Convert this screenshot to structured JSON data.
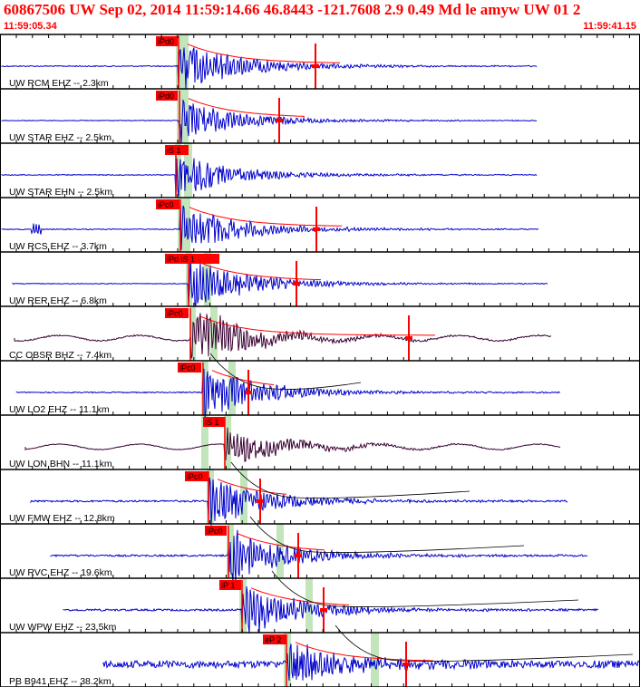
{
  "header": {
    "title": "60867506 UW Sep 02, 2014 11:59:14.66   46.8443 -121.7608  2.9 0.49 Md le amyw UW 01   2",
    "time_start": "11:59:05.34",
    "time_end": "11:59:41.15"
  },
  "colors": {
    "title": "#ff0000",
    "trace_blue": "#0000cc",
    "trace_dark": "#3a0033",
    "pick": "#ff0000",
    "pick_window": "#b8e0b0",
    "coda_fit": "#000000"
  },
  "chart_data": {
    "type": "seismogram",
    "time_range": [
      "11:59:05.34",
      "11:59:41.15"
    ],
    "traces": [
      {
        "label": "UW RCM EHZ -- 2.3km",
        "picks": [
          "iPd0"
        ],
        "color": "blue"
      },
      {
        "label": "UW STAR EHZ -- 2.5km",
        "picks": [
          "iPd0"
        ],
        "color": "blue"
      },
      {
        "label": "UW STAR EHN -- 2.5km",
        "picks": [
          "iS 1"
        ],
        "color": "blue"
      },
      {
        "label": "UW RCS EHZ -- 3.7km",
        "picks": [
          "iPc0"
        ],
        "color": "blue"
      },
      {
        "label": "UW RER EHZ -- 6.8km",
        "picks": [
          "iPd",
          "iS 1"
        ],
        "color": "blue"
      },
      {
        "label": "CC OBSR BHZ -- 7.4km",
        "picks": [
          "iPc0"
        ],
        "color": "dark"
      },
      {
        "label": "UW LO2 EHZ -- 11.1km",
        "picks": [
          "iPc0"
        ],
        "color": "blue"
      },
      {
        "label": "UW LON BHN -- 11.1km",
        "picks": [
          "iS 1"
        ],
        "color": "dark"
      },
      {
        "label": "UW FMW EHZ -- 12.8km",
        "picks": [
          "iPc0"
        ],
        "color": "blue"
      },
      {
        "label": "UW RVC EHZ -- 19.6km",
        "picks": [
          "iPc0"
        ],
        "color": "blue"
      },
      {
        "label": "UW WPW EHZ -- 23.5km",
        "picks": [
          "iP 1"
        ],
        "color": "blue"
      },
      {
        "label": "PB B941 EHZ -- 38.2km",
        "picks": [
          "eP 2"
        ],
        "color": "blue"
      }
    ]
  }
}
